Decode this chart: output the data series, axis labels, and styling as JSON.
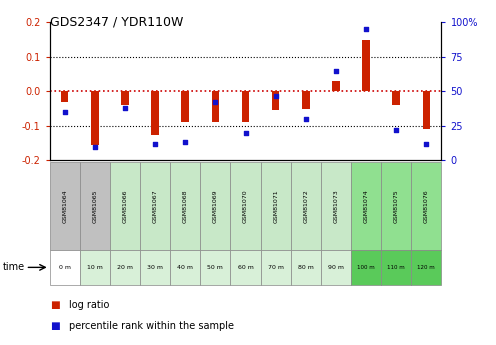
{
  "title": "GDS2347 / YDR110W",
  "samples": [
    "GSM81064",
    "GSM81065",
    "GSM81066",
    "GSM81067",
    "GSM81068",
    "GSM81069",
    "GSM81070",
    "GSM81071",
    "GSM81072",
    "GSM81073",
    "GSM81074",
    "GSM81075",
    "GSM81076"
  ],
  "times": [
    "0 m",
    "10 m",
    "20 m",
    "30 m",
    "40 m",
    "50 m",
    "60 m",
    "70 m",
    "80 m",
    "90 m",
    "100 m",
    "110 m",
    "120 m"
  ],
  "log_ratio": [
    -0.03,
    -0.155,
    -0.04,
    -0.125,
    -0.09,
    -0.09,
    -0.09,
    -0.055,
    -0.05,
    0.03,
    0.15,
    -0.04,
    -0.11
  ],
  "percentile": [
    35,
    10,
    38,
    12,
    13,
    42,
    20,
    47,
    30,
    65,
    95,
    22,
    12
  ],
  "bar_color": "#cc2200",
  "dot_color": "#1111cc",
  "bg_color": "#ffffff",
  "zero_line_color": "#cc0000",
  "ylim": [
    -0.2,
    0.2
  ],
  "left_yticks": [
    -0.2,
    -0.1,
    0.0,
    0.1,
    0.2
  ],
  "right_yticks": [
    0,
    25,
    50,
    75,
    100
  ],
  "sample_bg_colors": [
    "#c0c0c0",
    "#c0c0c0",
    "#c8e8c8",
    "#c8e8c8",
    "#c8e8c8",
    "#c8e8c8",
    "#c8e8c8",
    "#c8e8c8",
    "#c8e8c8",
    "#c8e8c8",
    "#90e090",
    "#90e090",
    "#90e090"
  ],
  "time_bg_colors": [
    "#ffffff",
    "#d8f0d8",
    "#d8f0d8",
    "#d8f0d8",
    "#d8f0d8",
    "#d8f0d8",
    "#d8f0d8",
    "#d8f0d8",
    "#d8f0d8",
    "#d8f0d8",
    "#5aca5a",
    "#5aca5a",
    "#5aca5a"
  ],
  "legend_log_ratio_label": "log ratio",
  "legend_percentile_label": "percentile rank within the sample"
}
